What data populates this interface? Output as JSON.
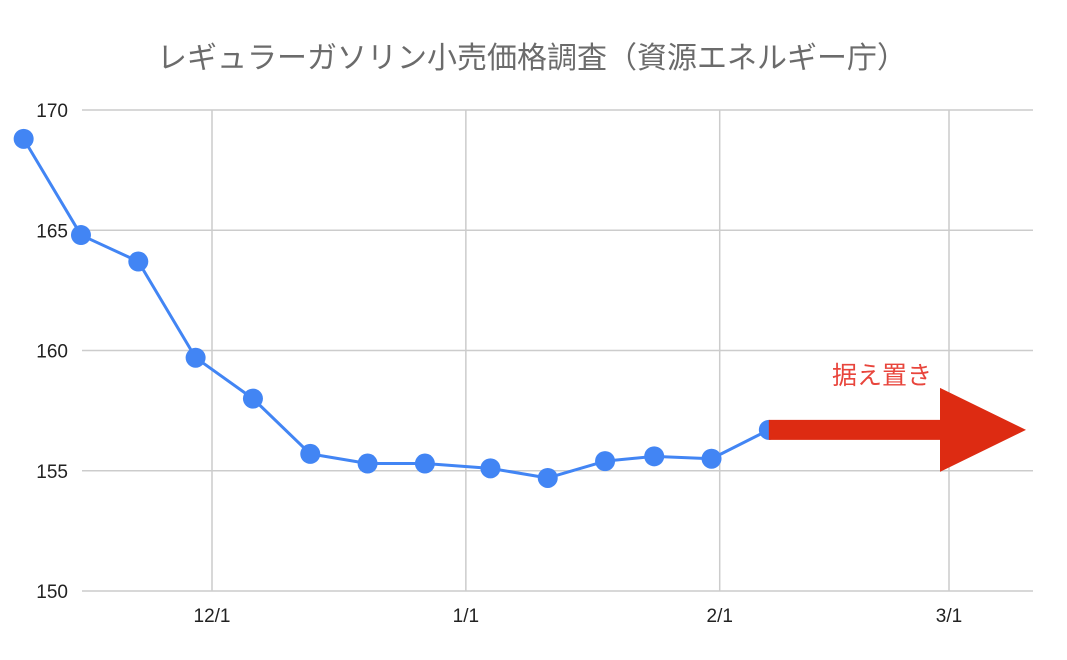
{
  "chart_data": {
    "type": "line",
    "title": "レギュラーガソリン小売価格調査（資源エネルギー庁）",
    "xlabel": "",
    "ylabel": "",
    "ylim": [
      150,
      170
    ],
    "yticks": [
      "150",
      "155",
      "160",
      "165",
      "170"
    ],
    "xticks": [
      {
        "label": "12/1",
        "date": "2021-12-01"
      },
      {
        "label": "1/1",
        "date": "2022-01-01"
      },
      {
        "label": "2/1",
        "date": "2022-02-01"
      },
      {
        "label": "3/1",
        "date": "2022-03-01"
      }
    ],
    "x_range": [
      "2021-11-17",
      "2022-03-15"
    ],
    "grid": true,
    "series": [
      {
        "color": "#4285f4",
        "points": [
          {
            "date": "2021-11-08",
            "value": 168.8
          },
          {
            "date": "2021-11-15",
            "value": 164.8
          },
          {
            "date": "2021-11-22",
            "value": 163.7
          },
          {
            "date": "2021-11-29",
            "value": 159.7
          },
          {
            "date": "2021-12-06",
            "value": 158.0
          },
          {
            "date": "2021-12-13",
            "value": 155.7
          },
          {
            "date": "2021-12-20",
            "value": 155.3
          },
          {
            "date": "2021-12-27",
            "value": 155.3
          },
          {
            "date": "2022-01-04",
            "value": 155.1
          },
          {
            "date": "2022-01-11",
            "value": 154.7
          },
          {
            "date": "2022-01-18",
            "value": 155.4
          },
          {
            "date": "2022-01-24",
            "value": 155.6
          },
          {
            "date": "2022-01-31",
            "value": 155.5
          },
          {
            "date": "2022-02-07",
            "value": 156.7
          }
        ]
      }
    ],
    "annotations": [
      {
        "text": "据え置き",
        "color": "#e8453c",
        "arrow_color": "#dd2b12",
        "direction": "right"
      }
    ]
  }
}
